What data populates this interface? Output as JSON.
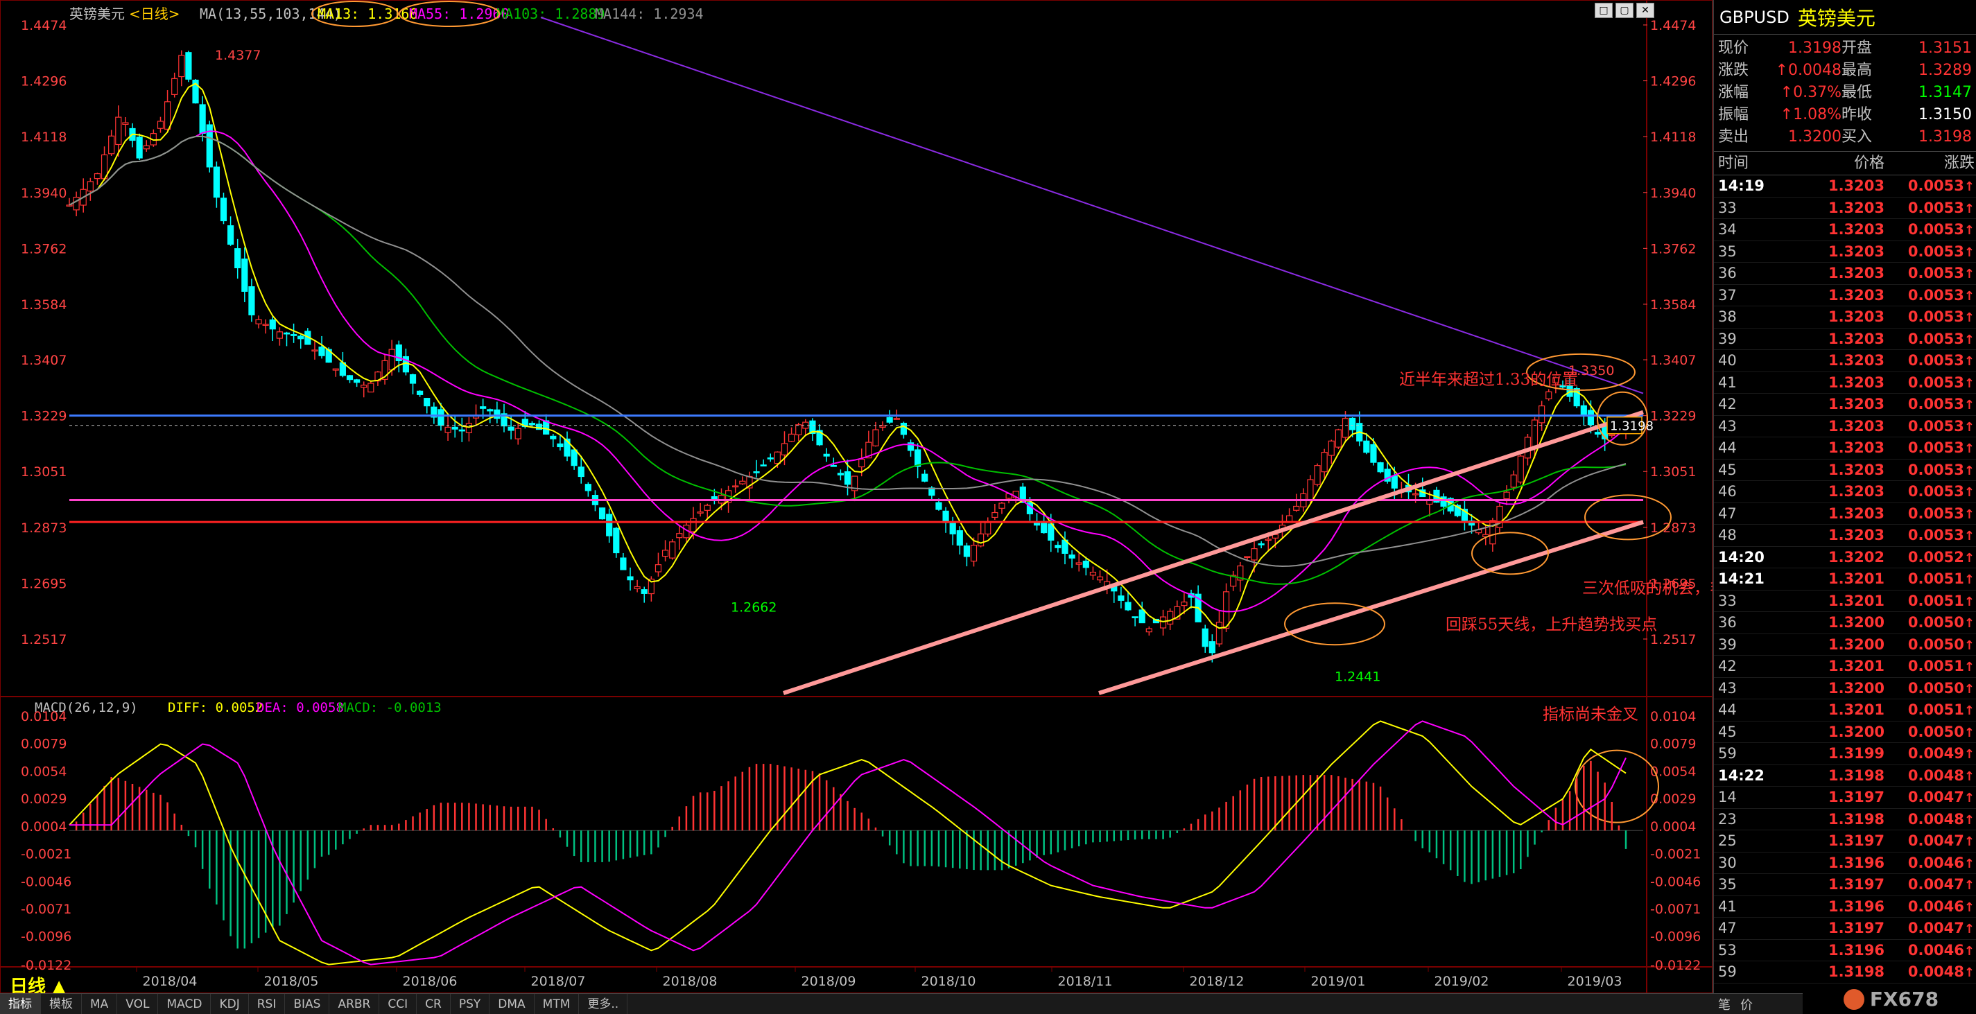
{
  "main_header": {
    "symbol_label": "英镑美元",
    "period": "<日线>",
    "ma_params": "MA(13,55,103,144)",
    "ma13": "MA13: 1.3166",
    "ma55": "MA55: 1.2960",
    "ma103": "MA103: 1.2889",
    "ma144": "MA144: 1.2934"
  },
  "macd_header": {
    "params": "MACD(26,12,9)",
    "diff": "DIFF: 0.0052",
    "dea": "DEA: 0.0058",
    "macd": "MACD: -0.0013"
  },
  "price_axis": [
    "1.4474",
    "1.4296",
    "1.4118",
    "1.3940",
    "1.3762",
    "1.3584",
    "1.3407",
    "1.3229",
    "1.3051",
    "1.2873",
    "1.2695",
    "1.2517"
  ],
  "macd_axis": [
    "0.0104",
    "0.0079",
    "0.0054",
    "0.0029",
    "0.0004",
    "-0.0021",
    "-0.0046",
    "-0.0071",
    "-0.0096",
    "-0.0122"
  ],
  "date_axis": [
    "2018/04",
    "2018/05",
    "2018/06",
    "2018/07",
    "2018/08",
    "2018/09",
    "2018/10",
    "2018/11",
    "2018/12",
    "2019/01",
    "2019/02",
    "2019/03"
  ],
  "price_labels": {
    "high": "1.4377",
    "low1": "1.2662",
    "low2": "1.2441",
    "recent_high": "1.3350",
    "current": "1.3198"
  },
  "annotations": {
    "a1": "近半年来超过1.33的位置",
    "a2": "三次低吸的机会，毛都都提示过了",
    "a3": "回踩55天线，上升趋势找买点",
    "a4": "指标尚未金叉"
  },
  "period_label": "日线",
  "tabs": [
    "指标",
    "模板",
    "MA",
    "VOL",
    "MACD",
    "KDJ",
    "RSI",
    "BIAS",
    "ARBR",
    "CCI",
    "CR",
    "PSY",
    "DMA",
    "MTM",
    "更多.."
  ],
  "colors": {
    "up": "#ff3333",
    "down": "#00ffff",
    "ma13": "#ffff00",
    "ma55": "#ff00ff",
    "ma103": "#00c000",
    "ma144": "#909090",
    "trend": "#ff9999"
  },
  "quote": {
    "symbol": "GBPUSD",
    "name": "英镑美元",
    "rows": [
      {
        "l1": "现价",
        "v1": "1.3198",
        "l2": "开盘",
        "v2": "1.3151"
      },
      {
        "l1": "涨跌",
        "v1": "↑0.0048",
        "l2": "最高",
        "v2": "1.3289"
      },
      {
        "l1": "涨幅",
        "v1": "↑0.37%",
        "l2": "最低",
        "v2": "1.3147"
      },
      {
        "l1": "振幅",
        "v1": "↑1.08%",
        "l2": "昨收",
        "v2": "1.3150"
      },
      {
        "l1": "卖出",
        "v1": "1.3200",
        "l2": "买入",
        "v2": "1.3198"
      }
    ]
  },
  "ticks_header": {
    "time": "时间",
    "price": "价格",
    "change": "涨跌"
  },
  "ticks": [
    {
      "t": "14:19",
      "p": "1.3203",
      "c": "0.0053",
      "major": true
    },
    {
      "t": "33",
      "p": "1.3203",
      "c": "0.0053"
    },
    {
      "t": "34",
      "p": "1.3203",
      "c": "0.0053"
    },
    {
      "t": "35",
      "p": "1.3203",
      "c": "0.0053"
    },
    {
      "t": "36",
      "p": "1.3203",
      "c": "0.0053"
    },
    {
      "t": "37",
      "p": "1.3203",
      "c": "0.0053"
    },
    {
      "t": "38",
      "p": "1.3203",
      "c": "0.0053"
    },
    {
      "t": "39",
      "p": "1.3203",
      "c": "0.0053"
    },
    {
      "t": "40",
      "p": "1.3203",
      "c": "0.0053"
    },
    {
      "t": "41",
      "p": "1.3203",
      "c": "0.0053"
    },
    {
      "t": "42",
      "p": "1.3203",
      "c": "0.0053"
    },
    {
      "t": "43",
      "p": "1.3203",
      "c": "0.0053"
    },
    {
      "t": "44",
      "p": "1.3203",
      "c": "0.0053"
    },
    {
      "t": "45",
      "p": "1.3203",
      "c": "0.0053"
    },
    {
      "t": "46",
      "p": "1.3203",
      "c": "0.0053"
    },
    {
      "t": "47",
      "p": "1.3203",
      "c": "0.0053"
    },
    {
      "t": "48",
      "p": "1.3203",
      "c": "0.0053"
    },
    {
      "t": "14:20",
      "p": "1.3202",
      "c": "0.0052",
      "major": true
    },
    {
      "t": "14:21",
      "p": "1.3201",
      "c": "0.0051",
      "major": true
    },
    {
      "t": "33",
      "p": "1.3201",
      "c": "0.0051"
    },
    {
      "t": "36",
      "p": "1.3200",
      "c": "0.0050"
    },
    {
      "t": "39",
      "p": "1.3200",
      "c": "0.0050"
    },
    {
      "t": "42",
      "p": "1.3201",
      "c": "0.0051"
    },
    {
      "t": "43",
      "p": "1.3200",
      "c": "0.0050"
    },
    {
      "t": "44",
      "p": "1.3201",
      "c": "0.0051"
    },
    {
      "t": "45",
      "p": "1.3200",
      "c": "0.0050"
    },
    {
      "t": "59",
      "p": "1.3199",
      "c": "0.0049"
    },
    {
      "t": "14:22",
      "p": "1.3198",
      "c": "0.0048",
      "major": true
    },
    {
      "t": "14",
      "p": "1.3197",
      "c": "0.0047"
    },
    {
      "t": "23",
      "p": "1.3198",
      "c": "0.0048"
    },
    {
      "t": "25",
      "p": "1.3197",
      "c": "0.0047"
    },
    {
      "t": "30",
      "p": "1.3196",
      "c": "0.0046"
    },
    {
      "t": "35",
      "p": "1.3197",
      "c": "0.0047"
    },
    {
      "t": "41",
      "p": "1.3196",
      "c": "0.0046"
    },
    {
      "t": "47",
      "p": "1.3197",
      "c": "0.0047"
    },
    {
      "t": "53",
      "p": "1.3196",
      "c": "0.0046"
    },
    {
      "t": "59",
      "p": "1.3198",
      "c": "0.0048"
    }
  ],
  "footer": {
    "btn1": "笔",
    "btn2": "价",
    "logo": "FX678"
  }
}
